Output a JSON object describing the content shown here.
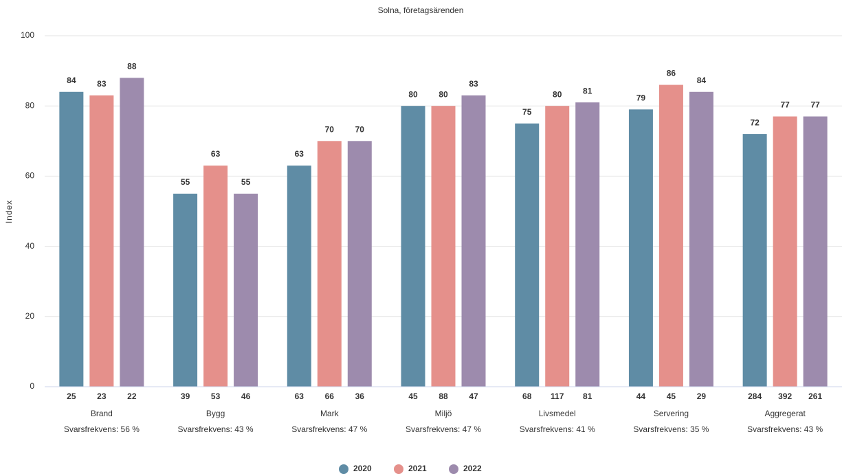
{
  "chart_data": {
    "type": "bar",
    "title": "Solna, företagsärenden",
    "ylabel": "Index",
    "categories": [
      "Brand",
      "Bygg",
      "Mark",
      "Miljö",
      "Livsmedel",
      "Servering",
      "Aggregerat"
    ],
    "response_rates": [
      "Svarsfrekvens: 56 %",
      "Svarsfrekvens: 43 %",
      "Svarsfrekvens: 47 %",
      "Svarsfrekvens: 47 %",
      "Svarsfrekvens: 41 %",
      "Svarsfrekvens: 35 %",
      "Svarsfrekvens: 43 %"
    ],
    "series": [
      {
        "name": "2020",
        "color": "#5f8ca5",
        "values": [
          84,
          55,
          63,
          80,
          75,
          79,
          72
        ],
        "responses": [
          25,
          39,
          63,
          45,
          68,
          44,
          284
        ]
      },
      {
        "name": "2021",
        "color": "#e5908b",
        "values": [
          83,
          63,
          70,
          80,
          80,
          86,
          77
        ],
        "responses": [
          23,
          53,
          66,
          88,
          117,
          45,
          392
        ]
      },
      {
        "name": "2022",
        "color": "#9d8bad",
        "values": [
          88,
          55,
          70,
          83,
          81,
          84,
          77
        ],
        "responses": [
          22,
          46,
          36,
          47,
          81,
          29,
          261
        ]
      }
    ],
    "ylim": [
      0,
      100
    ],
    "yticks": [
      0,
      20,
      40,
      60,
      80,
      100
    ],
    "grid": true,
    "legend": "bottom"
  }
}
